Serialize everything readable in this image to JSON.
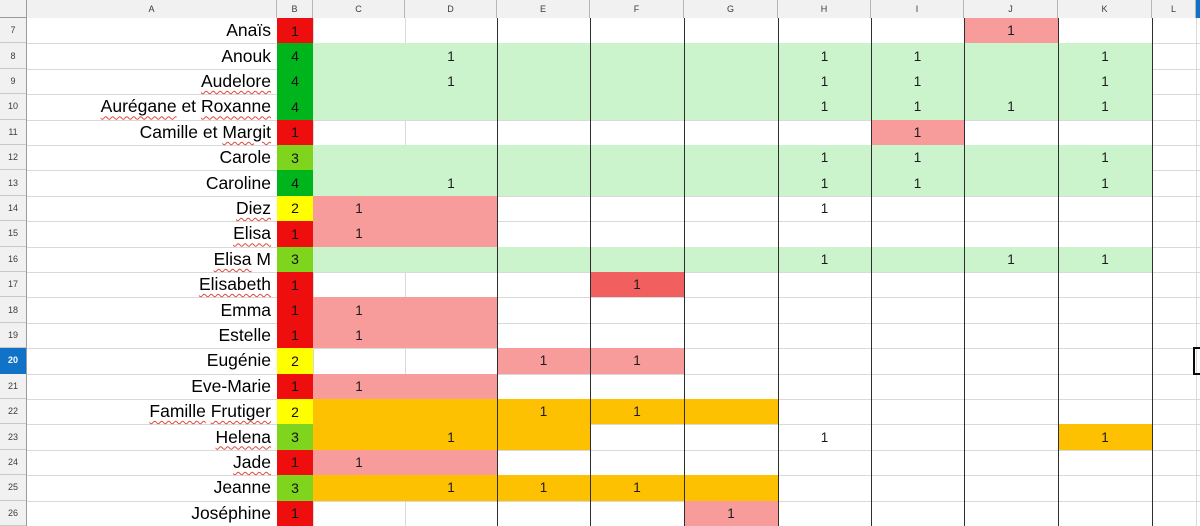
{
  "app": {
    "type": "spreadsheet-grid"
  },
  "column_headers": [
    "A",
    "B",
    "C",
    "D",
    "E",
    "F",
    "G",
    "H",
    "I",
    "J",
    "K",
    "L"
  ],
  "first_row_number": 7,
  "last_row_number": 26,
  "selection": {
    "row": 20,
    "column": "M"
  },
  "colors": {
    "red": "#ee0e0e",
    "green": "#00b41b",
    "chartreuse": "#7fd41e",
    "yellow": "#ffff00",
    "lightgreen": "#ccf4cc",
    "salmon": "#f79b9b",
    "red2": "#f25f5f",
    "orange": "#fdc101",
    "header_bg": "#f1f1f1",
    "header_text": "#3c3c3c",
    "selected_blue": "#1173c7",
    "gridline": "#d9d9d9",
    "border_dark": "#2e2e2e",
    "squiggle_red": "#e0483e"
  },
  "dark_vertical_borders_left_of": [
    "E",
    "F",
    "G",
    "H",
    "I",
    "J",
    "K",
    "L"
  ],
  "rows": [
    {
      "num": 7,
      "name": "Anaïs",
      "squiggle_words": [],
      "score": "1",
      "score_fill": "red",
      "band": null,
      "cells": [
        {
          "col": "J",
          "v": "1",
          "fill": "salmon"
        }
      ]
    },
    {
      "num": 8,
      "name": "Anouk",
      "squiggle_words": [],
      "score": "4",
      "score_fill": "green",
      "band": {
        "from": "C",
        "to": "K",
        "fill": "lightgreen"
      },
      "cells": [
        {
          "col": "D",
          "v": "1"
        },
        {
          "col": "H",
          "v": "1"
        },
        {
          "col": "I",
          "v": "1"
        },
        {
          "col": "K",
          "v": "1"
        }
      ]
    },
    {
      "num": 9,
      "name": "Audelore",
      "squiggle_words": [
        0
      ],
      "score": "4",
      "score_fill": "green",
      "band": {
        "from": "C",
        "to": "K",
        "fill": "lightgreen"
      },
      "cells": [
        {
          "col": "D",
          "v": "1"
        },
        {
          "col": "H",
          "v": "1"
        },
        {
          "col": "I",
          "v": "1"
        },
        {
          "col": "K",
          "v": "1"
        }
      ]
    },
    {
      "num": 10,
      "name": "Aurégane et Roxanne",
      "squiggle_words": [
        0,
        2
      ],
      "score": "4",
      "score_fill": "green",
      "band": {
        "from": "C",
        "to": "K",
        "fill": "lightgreen"
      },
      "cells": [
        {
          "col": "H",
          "v": "1"
        },
        {
          "col": "I",
          "v": "1"
        },
        {
          "col": "J",
          "v": "1"
        },
        {
          "col": "K",
          "v": "1"
        }
      ]
    },
    {
      "num": 11,
      "name": "Camille et Margit",
      "squiggle_words": [
        2
      ],
      "score": "1",
      "score_fill": "red",
      "band": null,
      "cells": [
        {
          "col": "I",
          "v": "1",
          "fill": "salmon"
        }
      ]
    },
    {
      "num": 12,
      "name": "Carole",
      "squiggle_words": [],
      "score": "3",
      "score_fill": "chartreuse",
      "band": {
        "from": "C",
        "to": "K",
        "fill": "lightgreen"
      },
      "cells": [
        {
          "col": "H",
          "v": "1"
        },
        {
          "col": "I",
          "v": "1"
        },
        {
          "col": "K",
          "v": "1"
        }
      ]
    },
    {
      "num": 13,
      "name": "Caroline",
      "squiggle_words": [],
      "score": "4",
      "score_fill": "green",
      "band": {
        "from": "C",
        "to": "K",
        "fill": "lightgreen"
      },
      "cells": [
        {
          "col": "D",
          "v": "1"
        },
        {
          "col": "H",
          "v": "1"
        },
        {
          "col": "I",
          "v": "1"
        },
        {
          "col": "K",
          "v": "1"
        }
      ]
    },
    {
      "num": 14,
      "name": "Diez",
      "squiggle_words": [
        0
      ],
      "score": "2",
      "score_fill": "yellow",
      "band": {
        "from": "C",
        "to": "D",
        "fill": "salmon"
      },
      "cells": [
        {
          "col": "C",
          "v": "1"
        },
        {
          "col": "H",
          "v": "1"
        }
      ]
    },
    {
      "num": 15,
      "name": "Elisa",
      "squiggle_words": [
        0
      ],
      "score": "1",
      "score_fill": "red",
      "band": {
        "from": "C",
        "to": "D",
        "fill": "salmon"
      },
      "cells": [
        {
          "col": "C",
          "v": "1"
        }
      ]
    },
    {
      "num": 16,
      "name": "Elisa M",
      "squiggle_words": [
        0
      ],
      "score": "3",
      "score_fill": "chartreuse",
      "band": {
        "from": "C",
        "to": "K",
        "fill": "lightgreen"
      },
      "cells": [
        {
          "col": "H",
          "v": "1"
        },
        {
          "col": "J",
          "v": "1"
        },
        {
          "col": "K",
          "v": "1"
        }
      ]
    },
    {
      "num": 17,
      "name": "Elisabeth",
      "squiggle_words": [
        0
      ],
      "score": "1",
      "score_fill": "red",
      "band": null,
      "cells": [
        {
          "col": "F",
          "v": "1",
          "fill": "red2"
        }
      ]
    },
    {
      "num": 18,
      "name": "Emma",
      "squiggle_words": [],
      "score": "1",
      "score_fill": "red",
      "band": {
        "from": "C",
        "to": "D",
        "fill": "salmon"
      },
      "cells": [
        {
          "col": "C",
          "v": "1"
        }
      ]
    },
    {
      "num": 19,
      "name": "Estelle",
      "squiggle_words": [],
      "score": "1",
      "score_fill": "red",
      "band": {
        "from": "C",
        "to": "D",
        "fill": "salmon"
      },
      "cells": [
        {
          "col": "C",
          "v": "1"
        }
      ]
    },
    {
      "num": 20,
      "name": "Eugénie",
      "squiggle_words": [],
      "score": "2",
      "score_fill": "yellow",
      "band": null,
      "cells": [
        {
          "col": "E",
          "v": "1",
          "fill": "salmon"
        },
        {
          "col": "F",
          "v": "1",
          "fill": "salmon"
        }
      ]
    },
    {
      "num": 21,
      "name": "Eve-Marie",
      "squiggle_words": [],
      "score": "1",
      "score_fill": "red",
      "band": {
        "from": "C",
        "to": "D",
        "fill": "salmon"
      },
      "cells": [
        {
          "col": "C",
          "v": "1"
        }
      ]
    },
    {
      "num": 22,
      "name": "Famille Frutiger",
      "squiggle_words": [
        0,
        1
      ],
      "score": "2",
      "score_fill": "yellow",
      "band": {
        "from": "C",
        "to": "G",
        "fill": "orange"
      },
      "cells": [
        {
          "col": "E",
          "v": "1"
        },
        {
          "col": "F",
          "v": "1"
        }
      ]
    },
    {
      "num": 23,
      "name": "Helena",
      "squiggle_words": [
        0
      ],
      "score": "3",
      "score_fill": "chartreuse",
      "band": {
        "from": "C",
        "to": "E",
        "fill": "orange"
      },
      "cells": [
        {
          "col": "D",
          "v": "1"
        },
        {
          "col": "H",
          "v": "1"
        },
        {
          "col": "K",
          "v": "1",
          "fill": "orange"
        }
      ]
    },
    {
      "num": 24,
      "name": "Jade",
      "squiggle_words": [
        0
      ],
      "score": "1",
      "score_fill": "red",
      "band": {
        "from": "C",
        "to": "D",
        "fill": "salmon"
      },
      "cells": [
        {
          "col": "C",
          "v": "1"
        }
      ]
    },
    {
      "num": 25,
      "name": "Jeanne",
      "squiggle_words": [],
      "score": "3",
      "score_fill": "chartreuse",
      "band": {
        "from": "C",
        "to": "G",
        "fill": "orange"
      },
      "cells": [
        {
          "col": "D",
          "v": "1"
        },
        {
          "col": "E",
          "v": "1"
        },
        {
          "col": "F",
          "v": "1"
        }
      ]
    },
    {
      "num": 26,
      "name": "Joséphine",
      "squiggle_words": [],
      "score": "1",
      "score_fill": "red",
      "band": null,
      "cells": [
        {
          "col": "G",
          "v": "1",
          "fill": "salmon"
        }
      ]
    }
  ]
}
